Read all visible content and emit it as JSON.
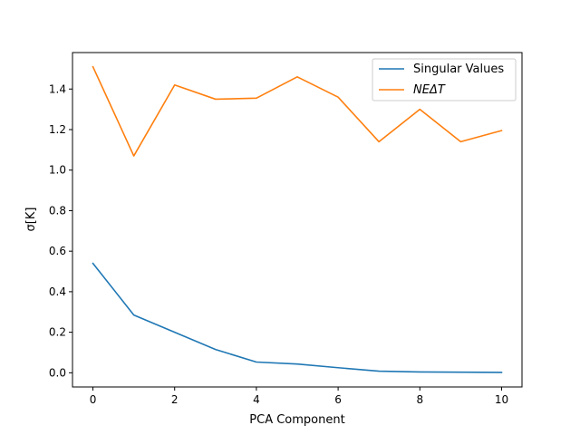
{
  "chart_data": {
    "type": "line",
    "title": "",
    "xlabel": "PCA Component",
    "ylabel": "σ[K]",
    "xlim": [
      -0.5,
      10.5
    ],
    "ylim": [
      -0.07,
      1.58
    ],
    "xticks": [
      0,
      2,
      4,
      6,
      8,
      10
    ],
    "yticks": [
      0.0,
      0.2,
      0.4,
      0.6,
      0.8,
      1.0,
      1.2,
      1.4
    ],
    "grid": false,
    "legend_position": "top-right",
    "x": [
      0,
      1,
      2,
      3,
      4,
      5,
      6,
      7,
      8,
      9,
      10
    ],
    "series": [
      {
        "name": "Singular Values",
        "color": "#1f77b4",
        "values": [
          0.54,
          0.285,
          0.2,
          0.115,
          0.053,
          0.043,
          0.025,
          0.008,
          0.004,
          0.003,
          0.002
        ]
      },
      {
        "name": "NEΔT",
        "color": "#ff7f0e",
        "values": [
          1.51,
          1.07,
          1.42,
          1.35,
          1.355,
          1.46,
          1.36,
          1.14,
          1.3,
          1.14,
          1.195
        ]
      }
    ]
  }
}
